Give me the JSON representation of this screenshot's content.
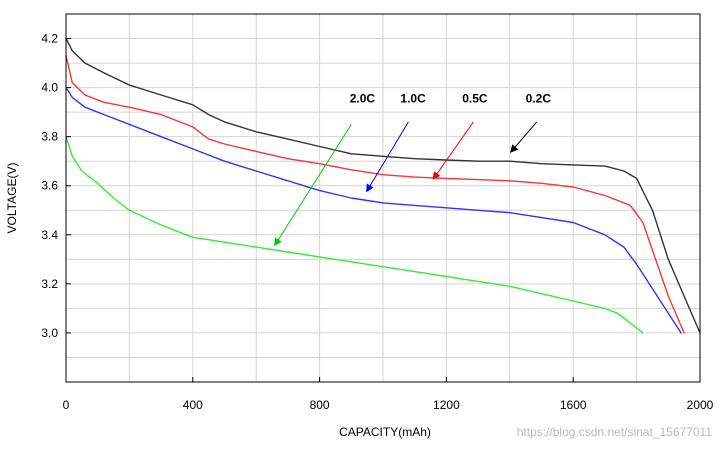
{
  "watermark": "https://blog.csdn.net/sinat_15677011",
  "chart_data": {
    "type": "line",
    "xlabel": "CAPACITY(mAh)",
    "ylabel": "VOLTAGE(V)",
    "xlim": [
      0,
      2000
    ],
    "ylim": [
      2.8,
      4.3
    ],
    "x_ticks": [
      "0",
      "400",
      "800",
      "1200",
      "1600",
      "2000"
    ],
    "y_ticks": [
      "3.0",
      "3.2",
      "3.4",
      "3.6",
      "3.8",
      "4.0",
      "4.2"
    ],
    "grid": true,
    "series": [
      {
        "name": "0.2C",
        "color": "#333333",
        "x": [
          0,
          20,
          60,
          120,
          200,
          300,
          400,
          450,
          500,
          600,
          700,
          800,
          900,
          1000,
          1100,
          1200,
          1300,
          1400,
          1500,
          1600,
          1700,
          1760,
          1800,
          1850,
          1900,
          1950,
          2000
        ],
        "y": [
          4.2,
          4.15,
          4.1,
          4.06,
          4.01,
          3.97,
          3.93,
          3.89,
          3.86,
          3.82,
          3.79,
          3.76,
          3.73,
          3.72,
          3.71,
          3.705,
          3.7,
          3.7,
          3.69,
          3.685,
          3.68,
          3.66,
          3.63,
          3.5,
          3.3,
          3.15,
          3.0
        ]
      },
      {
        "name": "0.5C",
        "color": "#ff3333",
        "x": [
          0,
          20,
          60,
          120,
          200,
          300,
          400,
          450,
          500,
          600,
          700,
          800,
          900,
          1000,
          1100,
          1200,
          1300,
          1400,
          1500,
          1600,
          1700,
          1780,
          1820,
          1860,
          1900,
          1950
        ],
        "y": [
          4.13,
          4.02,
          3.97,
          3.94,
          3.92,
          3.89,
          3.84,
          3.79,
          3.77,
          3.74,
          3.71,
          3.69,
          3.665,
          3.645,
          3.635,
          3.63,
          3.625,
          3.62,
          3.61,
          3.595,
          3.56,
          3.52,
          3.45,
          3.3,
          3.15,
          3.0
        ]
      },
      {
        "name": "1.0C",
        "color": "#3333ff",
        "x": [
          0,
          20,
          60,
          120,
          200,
          300,
          400,
          500,
          600,
          700,
          800,
          900,
          1000,
          1100,
          1200,
          1300,
          1400,
          1500,
          1600,
          1700,
          1760,
          1800,
          1850,
          1900,
          1940
        ],
        "y": [
          4.0,
          3.96,
          3.92,
          3.89,
          3.85,
          3.8,
          3.75,
          3.7,
          3.66,
          3.62,
          3.58,
          3.55,
          3.53,
          3.52,
          3.51,
          3.5,
          3.49,
          3.47,
          3.45,
          3.4,
          3.35,
          3.28,
          3.18,
          3.08,
          3.0
        ]
      },
      {
        "name": "2.0C",
        "color": "#33ee33",
        "x": [
          0,
          20,
          50,
          100,
          150,
          200,
          300,
          400,
          500,
          600,
          700,
          800,
          900,
          1000,
          1100,
          1200,
          1300,
          1400,
          1500,
          1600,
          1700,
          1740,
          1780,
          1820
        ],
        "y": [
          3.8,
          3.72,
          3.66,
          3.61,
          3.55,
          3.5,
          3.44,
          3.39,
          3.37,
          3.35,
          3.33,
          3.31,
          3.29,
          3.27,
          3.25,
          3.23,
          3.21,
          3.19,
          3.16,
          3.13,
          3.1,
          3.08,
          3.04,
          3.0
        ]
      }
    ],
    "annotations": [
      {
        "text": "2.0C",
        "series": "2.0C",
        "label_at": [
          935,
          3.94
        ],
        "arrow_from": [
          900,
          3.85
        ],
        "arrow_to": [
          660,
          3.36
        ]
      },
      {
        "text": "1.0C",
        "series": "1.0C",
        "label_at": [
          1095,
          3.94
        ],
        "arrow_from": [
          1080,
          3.86
        ],
        "arrow_to": [
          950,
          3.58
        ]
      },
      {
        "text": "0.5C",
        "series": "0.5C",
        "label_at": [
          1290,
          3.94
        ],
        "arrow_from": [
          1285,
          3.86
        ],
        "arrow_to": [
          1160,
          3.63
        ]
      },
      {
        "text": "0.2C",
        "series": "0.2C",
        "label_at": [
          1490,
          3.94
        ],
        "arrow_from": [
          1485,
          3.86
        ],
        "arrow_to": [
          1405,
          3.74
        ]
      }
    ]
  }
}
